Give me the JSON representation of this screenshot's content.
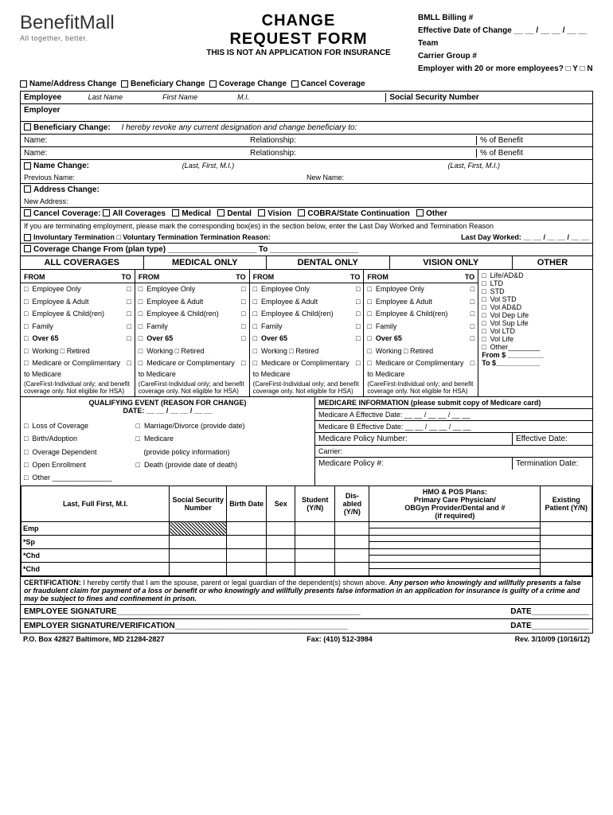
{
  "logo": {
    "brand1": "Benefit",
    "brand2": "Mall",
    "tagline": "All together, better."
  },
  "title": "CHANGE",
  "title2": "REQUEST FORM",
  "subtitle": "THIS IS NOT AN APPLICATION FOR INSURANCE",
  "rightInfo": {
    "l1": "BMLL Billing #",
    "l2": "Effective Date of Change __ __ / __ __ / __ __",
    "l3": "Team",
    "l4": "Carrier Group #",
    "l5": "Employer with 20 or more employees? □ Y □ N"
  },
  "changeTypes": [
    "Name/Address Change",
    "Beneficiary Change",
    "Coverage Change",
    "Cancel Coverage"
  ],
  "employee": {
    "label": "Employee",
    "last": "Last Name",
    "first": "First Name",
    "mi": "M.I.",
    "ssn": "Social Security Number"
  },
  "employer": "Employer",
  "beneficiary": {
    "label": "Beneficiary Change:",
    "note": "I hereby revoke any current designation and change beneficiary to:",
    "name": "Name:",
    "rel": "Relationship:",
    "pct": "% of Benefit"
  },
  "nameChange": {
    "label": "Name Change:",
    "hint1": "(Last, First, M.I.)",
    "hint2": "(Last, First, M.I.)",
    "prev": "Previous Name:",
    "new": "New Name:"
  },
  "addressChange": {
    "label": "Address Change:",
    "new": "New Address:"
  },
  "cancelCov": {
    "label": "Cancel Coverage:",
    "opts": [
      "All Coverages",
      "Medical",
      "Dental",
      "Vision",
      "COBRA/State Continuation",
      "Other"
    ],
    "note": "If you are terminating employment, please mark the corresponding box(es) in the section below, enter the Last Day Worked and Termination Reason",
    "termTypes": "Involuntary Termination □ Voluntary Termination  Termination Reason:",
    "lastDay": "Last Day Worked: __ __ / __ __ / __ __"
  },
  "covChange": "Coverage Change   From (plan type) ____________________ To ____________________",
  "covCols": [
    "ALL COVERAGES",
    "MEDICAL ONLY",
    "DENTAL ONLY",
    "VISION ONLY",
    "OTHER"
  ],
  "fromTo": {
    "from": "FROM",
    "to": "TO"
  },
  "covOpts": [
    "Employee Only",
    "Employee & Adult",
    "Employee & Child(ren)",
    "Family"
  ],
  "covBold": "Over 65",
  "covWork": "Working □  Retired",
  "covMed1": "Medicare or Complimentary to Medicare",
  "covMed2": "(CareFirst-Individual only; and benefit coverage only. Not eligible for HSA)",
  "otherOpts": [
    "Life/AD&D",
    "LTD",
    "STD",
    "Vol STD",
    "Vol AD&D",
    "Vol Dep Life",
    "Vol Sup Life",
    "Vol LTD",
    "Vol Life",
    "Other________"
  ],
  "otherFrom": "From $ _________",
  "otherTo": "To $___________",
  "qualEvent": {
    "title": "QUALIFYING EVENT (REASON FOR CHANGE)",
    "date": "DATE:    __ __ / __ __ / __ __",
    "col1": [
      "Loss of Coverage",
      "Birth/Adoption",
      "Overage Dependent",
      "Open Enrollment",
      "Other _______________"
    ],
    "col2": [
      "Marriage/Divorce (provide date)",
      "Medicare",
      "(provide policy information)",
      "Death (provide date of death)"
    ]
  },
  "medicare": {
    "title": "MEDICARE INFORMATION (please submit copy of Medicare card)",
    "a": "Medicare A Effective Date: __ __ / __ __ / __ __",
    "b": "Medicare B Effective Date: __ __ / __ __ / __ __",
    "policy": "Medicare Policy Number:",
    "eff": "Effective Date:",
    "carrier": "Carrier:",
    "policy2": "Medicare Policy #:",
    "term": "Termination Date:"
  },
  "depHeaders": [
    "Last,       Full First,         M.I.",
    "Social Security Number",
    "Birth Date",
    "Sex",
    "Student (Y/N)",
    "Dis-abled (Y/N)",
    "HMO & POS Plans:\nPrimary Care Physician/\nOBGyn Provider/Dental and  #\n(if required)",
    "Existing Patient (Y/N)"
  ],
  "depRows": [
    "Emp",
    "*Sp",
    "*Chd",
    "*Chd"
  ],
  "cert": {
    "label": "CERTIFICATION:",
    "text1": "I hereby certify that I am the spouse, parent or legal guardian of the dependent(s) shown above.",
    "text2": "Any person who knowingly and willfully presents a false or fraudulent claim for payment of a loss or benefit or who knowingly and willfully presents false information in an application for insurance is guilty of a crime and may be subject to fines and confinement in prison."
  },
  "sig1": "EMPLOYEE SIGNATURE",
  "sig2": "EMPLOYER SIGNATURE/VERIFICATION",
  "sigDate": "DATE",
  "footer": {
    "addr": "P.O. Box 42827 Baltimore, MD 21284-2827",
    "fax": "Fax: (410) 512-3984",
    "rev": "Rev. 3/10/09       (10/16/12)"
  }
}
